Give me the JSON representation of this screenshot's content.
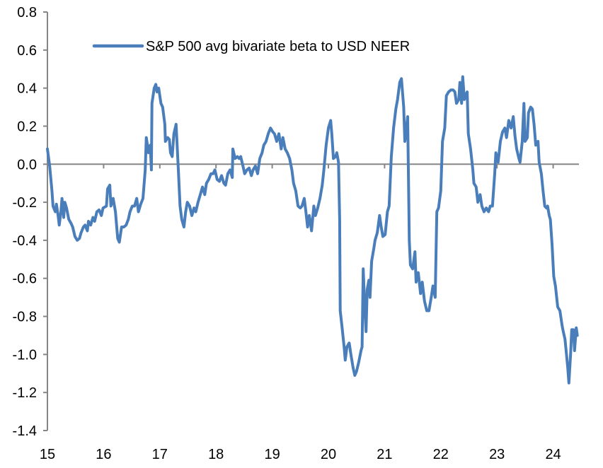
{
  "chart_data": {
    "type": "line",
    "title": "",
    "xlabel": "",
    "ylabel": "",
    "xlim": [
      15,
      24.5
    ],
    "ylim": [
      -1.4,
      0.8
    ],
    "y_ticks": [
      "0.8",
      "0.6",
      "0.4",
      "0.2",
      "0.0",
      "-0.2",
      "-0.4",
      "-0.6",
      "-0.8",
      "-1.0",
      "-1.2",
      "-1.4"
    ],
    "y_tick_values": [
      0.8,
      0.6,
      0.4,
      0.2,
      0.0,
      -0.2,
      -0.4,
      -0.6,
      -0.8,
      -1.0,
      -1.2,
      -1.4
    ],
    "x_ticks": [
      "15",
      "16",
      "17",
      "18",
      "19",
      "20",
      "21",
      "22",
      "23",
      "24"
    ],
    "x_tick_values": [
      15,
      16,
      17,
      18,
      19,
      20,
      21,
      22,
      23,
      24
    ],
    "grid": false,
    "zero_line": true,
    "legend_position": "top-left",
    "colors": {
      "series": "#4a7ebb",
      "axis": "#868686"
    },
    "series": [
      {
        "name": "S&P 500 avg bivariate beta to USD NEER",
        "x": [
          15.0,
          15.04,
          15.08,
          15.1,
          15.14,
          15.16,
          15.19,
          15.21,
          15.24,
          15.26,
          15.29,
          15.31,
          15.34,
          15.38,
          15.42,
          15.45,
          15.49,
          15.53,
          15.57,
          15.6,
          15.64,
          15.67,
          15.71,
          15.73,
          15.77,
          15.81,
          15.84,
          15.88,
          15.92,
          15.96,
          15.99,
          16.05,
          16.07,
          16.11,
          16.13,
          16.17,
          16.21,
          16.25,
          16.28,
          16.32,
          16.36,
          16.4,
          16.44,
          16.47,
          16.51,
          16.55,
          16.59,
          16.62,
          16.66,
          16.7,
          16.74,
          16.76,
          16.8,
          16.83,
          16.85,
          16.86,
          16.9,
          16.93,
          16.95,
          16.98,
          17.02,
          17.05,
          17.09,
          17.1,
          17.14,
          17.17,
          17.19,
          17.22,
          17.25,
          17.29,
          17.33,
          17.36,
          17.39,
          17.43,
          17.46,
          17.49,
          17.53,
          17.57,
          17.61,
          17.64,
          17.68,
          17.72,
          17.76,
          17.8,
          17.83,
          17.87,
          17.91,
          17.95,
          17.98,
          18.02,
          18.06,
          18.1,
          18.14,
          18.17,
          18.21,
          18.25,
          18.29,
          18.3,
          18.34,
          18.38,
          18.41,
          18.44,
          18.48,
          18.51,
          18.55,
          18.59,
          18.63,
          18.66,
          18.7,
          18.74,
          18.78,
          18.82,
          18.85,
          18.89,
          18.93,
          18.97,
          19.01,
          19.04,
          19.08,
          19.12,
          19.16,
          19.19,
          19.23,
          19.27,
          19.31,
          19.35,
          19.38,
          19.42,
          19.46,
          19.5,
          19.53,
          19.57,
          19.6,
          19.63,
          19.66,
          19.7,
          19.74,
          19.77,
          19.81,
          19.85,
          19.89,
          19.92,
          19.96,
          20.0,
          20.04,
          20.06,
          20.09,
          20.13,
          20.15,
          20.18,
          20.2,
          20.21,
          20.24,
          20.28,
          20.3,
          20.33,
          20.37,
          20.4,
          20.44,
          20.47,
          20.5,
          20.54,
          20.58,
          20.6,
          20.62,
          20.64,
          20.67,
          20.69,
          20.72,
          20.74,
          20.77,
          20.81,
          20.83,
          20.87,
          20.91,
          20.94,
          20.97,
          21.01,
          21.05,
          21.08,
          21.12,
          21.16,
          21.2,
          21.23,
          21.27,
          21.3,
          21.34,
          21.36,
          21.39,
          21.41,
          21.44,
          21.46,
          21.5,
          21.54,
          21.56,
          21.6,
          21.64,
          21.67,
          21.71,
          21.75,
          21.79,
          21.83,
          21.86,
          21.9,
          21.93,
          21.96,
          22.0,
          22.03,
          22.07,
          22.1,
          22.14,
          22.18,
          22.22,
          22.25,
          22.28,
          22.32,
          22.34,
          22.37,
          22.39,
          22.42,
          22.44,
          22.47,
          22.49,
          22.53,
          22.57,
          22.59,
          22.63,
          22.66,
          22.7,
          22.73,
          22.77,
          22.81,
          22.85,
          22.88,
          22.92,
          22.96,
          22.98,
          23.02,
          23.06,
          23.1,
          23.14,
          23.17,
          23.21,
          23.25,
          23.29,
          23.32,
          23.35,
          23.39,
          23.41,
          23.45,
          23.48,
          23.5,
          23.54,
          23.56,
          23.6,
          23.63,
          23.66,
          23.69,
          23.73,
          23.75,
          23.79,
          23.82,
          23.85,
          23.88,
          23.9,
          23.93,
          23.95,
          23.98,
          24.01,
          24.04,
          24.08,
          24.12,
          24.16,
          24.18,
          24.21,
          24.23,
          24.26,
          24.28,
          24.31,
          24.33,
          24.36,
          24.38,
          24.41,
          24.43
        ],
        "y": [
          0.08,
          -0.01,
          -0.14,
          -0.22,
          -0.25,
          -0.21,
          -0.27,
          -0.32,
          -0.25,
          -0.18,
          -0.28,
          -0.2,
          -0.23,
          -0.29,
          -0.31,
          -0.33,
          -0.38,
          -0.4,
          -0.39,
          -0.36,
          -0.33,
          -0.32,
          -0.35,
          -0.3,
          -0.32,
          -0.28,
          -0.3,
          -0.25,
          -0.24,
          -0.27,
          -0.23,
          -0.22,
          -0.13,
          -0.11,
          -0.22,
          -0.18,
          -0.25,
          -0.39,
          -0.41,
          -0.33,
          -0.33,
          -0.32,
          -0.29,
          -0.25,
          -0.22,
          -0.22,
          -0.18,
          -0.25,
          -0.21,
          -0.18,
          -0.03,
          0.14,
          0.06,
          0.1,
          -0.03,
          0.32,
          0.4,
          0.42,
          0.38,
          0.4,
          0.32,
          0.3,
          0.21,
          0.12,
          0.14,
          0.13,
          0.06,
          0.04,
          0.16,
          0.21,
          -0.03,
          -0.22,
          -0.29,
          -0.33,
          -0.25,
          -0.2,
          -0.22,
          -0.27,
          -0.23,
          -0.25,
          -0.2,
          -0.16,
          -0.12,
          -0.16,
          -0.1,
          -0.08,
          -0.05,
          -0.05,
          -0.03,
          -0.08,
          -0.09,
          -0.06,
          -0.1,
          -0.11,
          -0.05,
          -0.03,
          -0.07,
          0.08,
          0.03,
          0.04,
          0.03,
          0.04,
          -0.01,
          -0.05,
          -0.03,
          -0.02,
          -0.06,
          -0.03,
          -0.01,
          -0.05,
          0.03,
          0.06,
          0.1,
          0.12,
          0.16,
          0.19,
          0.17,
          0.16,
          0.12,
          0.16,
          0.08,
          0.14,
          0.08,
          0.06,
          0.03,
          -0.03,
          -0.1,
          -0.14,
          -0.22,
          -0.23,
          -0.22,
          -0.18,
          -0.25,
          -0.33,
          -0.27,
          -0.35,
          -0.22,
          -0.27,
          -0.23,
          -0.18,
          -0.11,
          -0.03,
          0.1,
          0.19,
          0.23,
          0.16,
          0.03,
          0.04,
          0.06,
          0.01,
          -0.29,
          -0.77,
          -0.85,
          -0.96,
          -1.03,
          -0.96,
          -0.94,
          -1.0,
          -1.07,
          -1.11,
          -1.09,
          -1.04,
          -0.98,
          -0.96,
          -0.55,
          -0.7,
          -0.88,
          -0.66,
          -0.61,
          -0.7,
          -0.51,
          -0.44,
          -0.4,
          -0.36,
          -0.27,
          -0.33,
          -0.38,
          -0.37,
          -0.25,
          -0.22,
          0.04,
          0.19,
          0.29,
          0.34,
          0.43,
          0.45,
          0.3,
          0.12,
          0.19,
          0.25,
          -0.4,
          -0.53,
          -0.55,
          -0.46,
          -0.62,
          -0.57,
          -0.68,
          -0.62,
          -0.72,
          -0.77,
          -0.77,
          -0.7,
          -0.64,
          -0.7,
          -0.25,
          -0.23,
          -0.14,
          0.12,
          0.19,
          0.36,
          0.38,
          0.39,
          0.39,
          0.38,
          0.32,
          0.34,
          0.43,
          0.32,
          0.46,
          0.34,
          0.36,
          0.38,
          0.16,
          0.08,
          -0.03,
          -0.1,
          -0.12,
          -0.2,
          -0.16,
          -0.22,
          -0.25,
          -0.23,
          -0.25,
          -0.22,
          -0.22,
          -0.05,
          0.06,
          0.01,
          0.12,
          0.17,
          0.19,
          0.14,
          0.23,
          0.19,
          0.25,
          0.15,
          0.08,
          0.03,
          0.01,
          0.12,
          0.32,
          0.12,
          0.14,
          0.27,
          0.3,
          0.29,
          0.21,
          0.1,
          0.12,
          0.01,
          -0.05,
          -0.14,
          -0.22,
          -0.23,
          -0.22,
          -0.27,
          -0.29,
          -0.42,
          -0.59,
          -0.64,
          -0.75,
          -0.77,
          -0.85,
          -0.88,
          -0.92,
          -0.98,
          -1.07,
          -1.15,
          -1.0,
          -0.87,
          -0.87,
          -0.98,
          -0.86,
          -0.9
        ]
      }
    ]
  }
}
